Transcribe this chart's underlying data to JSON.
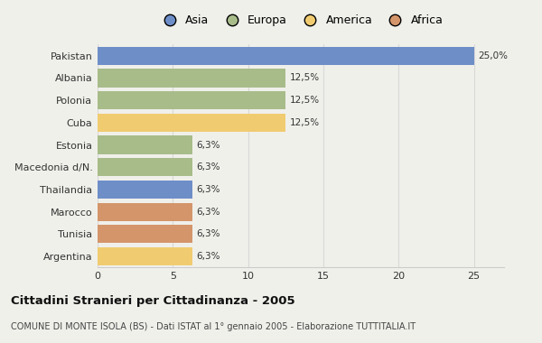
{
  "categories": [
    "Pakistan",
    "Albania",
    "Polonia",
    "Cuba",
    "Estonia",
    "Macedonia d/N.",
    "Thailandia",
    "Marocco",
    "Tunisia",
    "Argentina"
  ],
  "values": [
    25.0,
    12.5,
    12.5,
    12.5,
    6.3,
    6.3,
    6.3,
    6.3,
    6.3,
    6.3
  ],
  "labels": [
    "25,0%",
    "12,5%",
    "12,5%",
    "12,5%",
    "6,3%",
    "6,3%",
    "6,3%",
    "6,3%",
    "6,3%",
    "6,3%"
  ],
  "colors": [
    "#6e8ec8",
    "#a8bc8a",
    "#a8bc8a",
    "#f0cb70",
    "#a8bc8a",
    "#a8bc8a",
    "#6e8ec8",
    "#d4956a",
    "#d4956a",
    "#f0cb70"
  ],
  "legend": [
    {
      "label": "Asia",
      "color": "#6e8ec8"
    },
    {
      "label": "Europa",
      "color": "#a8bc8a"
    },
    {
      "label": "America",
      "color": "#f0cb70"
    },
    {
      "label": "Africa",
      "color": "#d4956a"
    }
  ],
  "xlim": [
    0,
    27
  ],
  "xticks": [
    0,
    5,
    10,
    15,
    20,
    25
  ],
  "title": "Cittadini Stranieri per Cittadinanza - 2005",
  "subtitle": "COMUNE DI MONTE ISOLA (BS) - Dati ISTAT al 1° gennaio 2005 - Elaborazione TUTTITALIA.IT",
  "bg_color": "#f0f0eb",
  "plot_bg": "#f0f0eb"
}
